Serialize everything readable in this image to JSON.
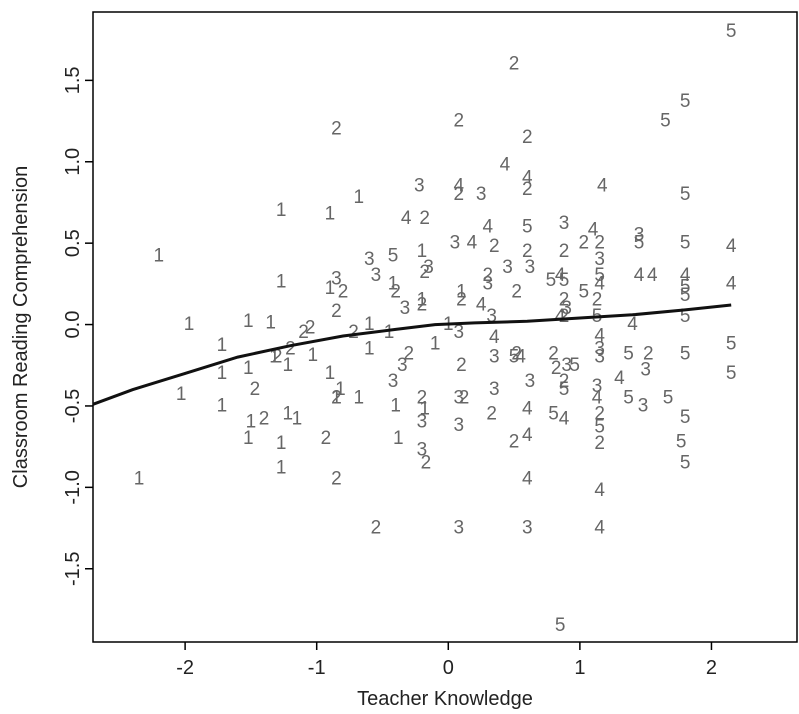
{
  "chart_data": {
    "type": "scatter",
    "xlabel": "Teacher Knowledge",
    "ylabel": "Classroom Reading Comprehension",
    "xlim": [
      -2.7,
      2.65
    ],
    "ylim": [
      -1.95,
      1.92
    ],
    "x_ticks": [
      -2,
      -1,
      0,
      1,
      2
    ],
    "y_ticks": [
      -1.5,
      -1.0,
      -0.5,
      0.0,
      0.5,
      1.0,
      1.5
    ],
    "y_tick_labels": [
      "-1.5",
      "-1.0",
      "-0.5",
      "0.0",
      "0.5",
      "1.0",
      "1.5"
    ],
    "marker": "point labels are group digits 1-5",
    "colors": {
      "points": "#666666",
      "smoother": "#111111"
    },
    "points": [
      {
        "x": -2.35,
        "y": -0.95,
        "label": "1"
      },
      {
        "x": -2.2,
        "y": 0.42,
        "label": "1"
      },
      {
        "x": -2.03,
        "y": -0.43,
        "label": "1"
      },
      {
        "x": -1.72,
        "y": -0.13,
        "label": "1"
      },
      {
        "x": -1.72,
        "y": -0.3,
        "label": "1"
      },
      {
        "x": -1.72,
        "y": -0.5,
        "label": "1"
      },
      {
        "x": -1.52,
        "y": 0.02,
        "label": "1"
      },
      {
        "x": -1.52,
        "y": -0.27,
        "label": "1"
      },
      {
        "x": -1.5,
        "y": -0.6,
        "label": "1"
      },
      {
        "x": -1.52,
        "y": -0.7,
        "label": "1"
      },
      {
        "x": -1.35,
        "y": 0.01,
        "label": "1"
      },
      {
        "x": -1.32,
        "y": -0.2,
        "label": "1"
      },
      {
        "x": -1.27,
        "y": 0.26,
        "label": "1"
      },
      {
        "x": -1.27,
        "y": 0.7,
        "label": "1"
      },
      {
        "x": -1.27,
        "y": -0.73,
        "label": "1"
      },
      {
        "x": -1.27,
        "y": -0.88,
        "label": "1"
      },
      {
        "x": -1.22,
        "y": -0.55,
        "label": "1"
      },
      {
        "x": -1.22,
        "y": -0.25,
        "label": "1"
      },
      {
        "x": -1.15,
        "y": -0.58,
        "label": "1"
      },
      {
        "x": -1.03,
        "y": -0.19,
        "label": "1"
      },
      {
        "x": -0.9,
        "y": 0.68,
        "label": "1"
      },
      {
        "x": -0.9,
        "y": 0.22,
        "label": "1"
      },
      {
        "x": -0.9,
        "y": -0.3,
        "label": "1"
      },
      {
        "x": -0.85,
        "y": -0.45,
        "label": "1"
      },
      {
        "x": -0.82,
        "y": -0.4,
        "label": "1"
      },
      {
        "x": -0.68,
        "y": 0.78,
        "label": "1"
      },
      {
        "x": -0.68,
        "y": -0.45,
        "label": "1"
      },
      {
        "x": -0.6,
        "y": -0.15,
        "label": "1"
      },
      {
        "x": -0.6,
        "y": 0.0,
        "label": "1"
      },
      {
        "x": -0.45,
        "y": -0.05,
        "label": "1"
      },
      {
        "x": -0.42,
        "y": 0.25,
        "label": "1"
      },
      {
        "x": -0.4,
        "y": -0.5,
        "label": "1"
      },
      {
        "x": -0.38,
        "y": -0.7,
        "label": "1"
      },
      {
        "x": -0.2,
        "y": 0.45,
        "label": "1"
      },
      {
        "x": -0.2,
        "y": 0.15,
        "label": "1"
      },
      {
        "x": -0.18,
        "y": -0.52,
        "label": "1"
      },
      {
        "x": -0.1,
        "y": -0.12,
        "label": "1"
      },
      {
        "x": 0.0,
        "y": 0.0,
        "label": "1"
      },
      {
        "x": 0.1,
        "y": 0.2,
        "label": "1"
      },
      {
        "x": -1.97,
        "y": 0.0,
        "label": "1"
      },
      {
        "x": -1.47,
        "y": -0.4,
        "label": "2"
      },
      {
        "x": -1.4,
        "y": -0.58,
        "label": "2"
      },
      {
        "x": -1.3,
        "y": -0.2,
        "label": "2"
      },
      {
        "x": -1.2,
        "y": -0.15,
        "label": "2"
      },
      {
        "x": -1.1,
        "y": -0.05,
        "label": "2"
      },
      {
        "x": -1.05,
        "y": -0.02,
        "label": "2"
      },
      {
        "x": -0.93,
        "y": -0.7,
        "label": "2"
      },
      {
        "x": -0.85,
        "y": 1.2,
        "label": "2"
      },
      {
        "x": -0.85,
        "y": 0.08,
        "label": "2"
      },
      {
        "x": -0.85,
        "y": -0.45,
        "label": "2"
      },
      {
        "x": -0.85,
        "y": -0.95,
        "label": "2"
      },
      {
        "x": -0.8,
        "y": 0.2,
        "label": "2"
      },
      {
        "x": -0.72,
        "y": -0.05,
        "label": "2"
      },
      {
        "x": -0.55,
        "y": -1.25,
        "label": "2"
      },
      {
        "x": -0.4,
        "y": 0.2,
        "label": "2"
      },
      {
        "x": -0.3,
        "y": -0.18,
        "label": "2"
      },
      {
        "x": -0.18,
        "y": 0.65,
        "label": "2"
      },
      {
        "x": -0.18,
        "y": 0.32,
        "label": "2"
      },
      {
        "x": -0.2,
        "y": 0.12,
        "label": "2"
      },
      {
        "x": -0.2,
        "y": -0.45,
        "label": "2"
      },
      {
        "x": -0.17,
        "y": -0.85,
        "label": "2"
      },
      {
        "x": 0.08,
        "y": 1.25,
        "label": "2"
      },
      {
        "x": 0.08,
        "y": 0.8,
        "label": "2"
      },
      {
        "x": 0.1,
        "y": 0.15,
        "label": "2"
      },
      {
        "x": 0.1,
        "y": -0.25,
        "label": "2"
      },
      {
        "x": 0.12,
        "y": -0.45,
        "label": "2"
      },
      {
        "x": 0.3,
        "y": 0.3,
        "label": "2"
      },
      {
        "x": 0.33,
        "y": -0.55,
        "label": "2"
      },
      {
        "x": 0.35,
        "y": 0.48,
        "label": "2"
      },
      {
        "x": 0.5,
        "y": 1.6,
        "label": "2"
      },
      {
        "x": 0.5,
        "y": -0.72,
        "label": "2"
      },
      {
        "x": 0.52,
        "y": 0.2,
        "label": "2"
      },
      {
        "x": 0.52,
        "y": -0.18,
        "label": "2"
      },
      {
        "x": 0.6,
        "y": 1.15,
        "label": "2"
      },
      {
        "x": 0.6,
        "y": 0.83,
        "label": "2"
      },
      {
        "x": 0.6,
        "y": 0.45,
        "label": "2"
      },
      {
        "x": 0.8,
        "y": -0.18,
        "label": "2"
      },
      {
        "x": 0.82,
        "y": -0.27,
        "label": "2"
      },
      {
        "x": 0.88,
        "y": 0.45,
        "label": "2"
      },
      {
        "x": 0.88,
        "y": 0.15,
        "label": "2"
      },
      {
        "x": 0.88,
        "y": 0.05,
        "label": "2"
      },
      {
        "x": 0.88,
        "y": -0.35,
        "label": "2"
      },
      {
        "x": 1.03,
        "y": 0.5,
        "label": "2"
      },
      {
        "x": 1.15,
        "y": 0.5,
        "label": "2"
      },
      {
        "x": 1.13,
        "y": 0.15,
        "label": "2"
      },
      {
        "x": 1.15,
        "y": -0.55,
        "label": "2"
      },
      {
        "x": 1.15,
        "y": -0.73,
        "label": "2"
      },
      {
        "x": 1.52,
        "y": -0.18,
        "label": "2"
      },
      {
        "x": -0.85,
        "y": 0.28,
        "label": "3"
      },
      {
        "x": -0.6,
        "y": 0.4,
        "label": "3"
      },
      {
        "x": -0.55,
        "y": 0.3,
        "label": "3"
      },
      {
        "x": -0.42,
        "y": -0.35,
        "label": "3"
      },
      {
        "x": -0.35,
        "y": -0.25,
        "label": "3"
      },
      {
        "x": -0.33,
        "y": 0.1,
        "label": "3"
      },
      {
        "x": -0.15,
        "y": 0.35,
        "label": "3"
      },
      {
        "x": -0.22,
        "y": 0.85,
        "label": "3"
      },
      {
        "x": -0.2,
        "y": -0.6,
        "label": "3"
      },
      {
        "x": -0.2,
        "y": -0.77,
        "label": "3"
      },
      {
        "x": 0.05,
        "y": 0.5,
        "label": "3"
      },
      {
        "x": 0.08,
        "y": -0.05,
        "label": "3"
      },
      {
        "x": 0.08,
        "y": -0.45,
        "label": "3"
      },
      {
        "x": 0.08,
        "y": -0.62,
        "label": "3"
      },
      {
        "x": 0.08,
        "y": -1.25,
        "label": "3"
      },
      {
        "x": 0.25,
        "y": 0.8,
        "label": "3"
      },
      {
        "x": 0.3,
        "y": 0.25,
        "label": "3"
      },
      {
        "x": 0.33,
        "y": 0.05,
        "label": "3"
      },
      {
        "x": 0.35,
        "y": -0.2,
        "label": "3"
      },
      {
        "x": 0.35,
        "y": -0.4,
        "label": "3"
      },
      {
        "x": 0.45,
        "y": 0.35,
        "label": "3"
      },
      {
        "x": 0.62,
        "y": 0.35,
        "label": "3"
      },
      {
        "x": 0.62,
        "y": -0.35,
        "label": "3"
      },
      {
        "x": 0.6,
        "y": -1.25,
        "label": "3"
      },
      {
        "x": 0.88,
        "y": 0.62,
        "label": "3"
      },
      {
        "x": 0.9,
        "y": 0.1,
        "label": "3"
      },
      {
        "x": 0.9,
        "y": -0.25,
        "label": "3"
      },
      {
        "x": 1.15,
        "y": 0.4,
        "label": "3"
      },
      {
        "x": 1.15,
        "y": -0.15,
        "label": "3"
      },
      {
        "x": 1.15,
        "y": -0.2,
        "label": "3"
      },
      {
        "x": 1.13,
        "y": -0.38,
        "label": "3"
      },
      {
        "x": 1.5,
        "y": -0.28,
        "label": "3"
      },
      {
        "x": 1.48,
        "y": -0.5,
        "label": "3"
      },
      {
        "x": 1.45,
        "y": 0.55,
        "label": "3"
      },
      {
        "x": -0.32,
        "y": 0.65,
        "label": "4"
      },
      {
        "x": 0.08,
        "y": 0.85,
        "label": "4"
      },
      {
        "x": 0.18,
        "y": 0.5,
        "label": "4"
      },
      {
        "x": 0.3,
        "y": 0.6,
        "label": "4"
      },
      {
        "x": 0.25,
        "y": 0.12,
        "label": "4"
      },
      {
        "x": 0.35,
        "y": -0.08,
        "label": "4"
      },
      {
        "x": 0.43,
        "y": 0.98,
        "label": "4"
      },
      {
        "x": 0.55,
        "y": -0.2,
        "label": "4"
      },
      {
        "x": 0.6,
        "y": 0.9,
        "label": "4"
      },
      {
        "x": 0.6,
        "y": -0.52,
        "label": "4"
      },
      {
        "x": 0.6,
        "y": -0.68,
        "label": "4"
      },
      {
        "x": 0.6,
        "y": -0.95,
        "label": "4"
      },
      {
        "x": 0.85,
        "y": 0.3,
        "label": "4"
      },
      {
        "x": 0.85,
        "y": 0.05,
        "label": "4"
      },
      {
        "x": 0.88,
        "y": -0.58,
        "label": "4"
      },
      {
        "x": 1.1,
        "y": 0.58,
        "label": "4"
      },
      {
        "x": 1.17,
        "y": 0.85,
        "label": "4"
      },
      {
        "x": 1.15,
        "y": 0.25,
        "label": "4"
      },
      {
        "x": 1.15,
        "y": -0.07,
        "label": "4"
      },
      {
        "x": 1.13,
        "y": -0.45,
        "label": "4"
      },
      {
        "x": 1.15,
        "y": -1.02,
        "label": "4"
      },
      {
        "x": 1.15,
        "y": -1.25,
        "label": "4"
      },
      {
        "x": 1.3,
        "y": -0.33,
        "label": "4"
      },
      {
        "x": 1.45,
        "y": 0.3,
        "label": "4"
      },
      {
        "x": 1.55,
        "y": 0.3,
        "label": "4"
      },
      {
        "x": 1.8,
        "y": 0.3,
        "label": "4"
      },
      {
        "x": 2.15,
        "y": 0.48,
        "label": "4"
      },
      {
        "x": 2.15,
        "y": 0.25,
        "label": "4"
      },
      {
        "x": 1.4,
        "y": 0.0,
        "label": "4"
      },
      {
        "x": -0.42,
        "y": 0.42,
        "label": "5"
      },
      {
        "x": 0.5,
        "y": -0.2,
        "label": "5"
      },
      {
        "x": 0.6,
        "y": 0.6,
        "label": "5"
      },
      {
        "x": 0.78,
        "y": 0.27,
        "label": "5"
      },
      {
        "x": 0.8,
        "y": -0.55,
        "label": "5"
      },
      {
        "x": 0.88,
        "y": 0.27,
        "label": "5"
      },
      {
        "x": 0.88,
        "y": -0.4,
        "label": "5"
      },
      {
        "x": 0.85,
        "y": -1.85,
        "label": "5"
      },
      {
        "x": 1.03,
        "y": 0.2,
        "label": "5"
      },
      {
        "x": 1.15,
        "y": 0.3,
        "label": "5"
      },
      {
        "x": 1.13,
        "y": 0.05,
        "label": "5"
      },
      {
        "x": 1.15,
        "y": -0.63,
        "label": "5"
      },
      {
        "x": 1.37,
        "y": -0.18,
        "label": "5"
      },
      {
        "x": 1.37,
        "y": -0.45,
        "label": "5"
      },
      {
        "x": 1.45,
        "y": 0.5,
        "label": "5"
      },
      {
        "x": 1.65,
        "y": 1.25,
        "label": "5"
      },
      {
        "x": 1.67,
        "y": -0.45,
        "label": "5"
      },
      {
        "x": 1.8,
        "y": 1.37,
        "label": "5"
      },
      {
        "x": 1.8,
        "y": 0.8,
        "label": "5"
      },
      {
        "x": 1.8,
        "y": 0.5,
        "label": "5"
      },
      {
        "x": 1.8,
        "y": 0.23,
        "label": "5"
      },
      {
        "x": 1.8,
        "y": 0.18,
        "label": "5"
      },
      {
        "x": 1.8,
        "y": 0.05,
        "label": "5"
      },
      {
        "x": 1.8,
        "y": -0.18,
        "label": "5"
      },
      {
        "x": 1.8,
        "y": -0.57,
        "label": "5"
      },
      {
        "x": 1.77,
        "y": -0.72,
        "label": "5"
      },
      {
        "x": 1.8,
        "y": -0.85,
        "label": "5"
      },
      {
        "x": 2.15,
        "y": 1.8,
        "label": "5"
      },
      {
        "x": 2.15,
        "y": -0.12,
        "label": "5"
      },
      {
        "x": 2.15,
        "y": -0.3,
        "label": "5"
      },
      {
        "x": 0.96,
        "y": -0.25,
        "label": "5"
      }
    ],
    "smoother": [
      {
        "x": -2.7,
        "y": -0.49
      },
      {
        "x": -2.4,
        "y": -0.4
      },
      {
        "x": -2.0,
        "y": -0.3
      },
      {
        "x": -1.6,
        "y": -0.2
      },
      {
        "x": -1.2,
        "y": -0.13
      },
      {
        "x": -0.8,
        "y": -0.07
      },
      {
        "x": -0.4,
        "y": -0.03
      },
      {
        "x": -0.1,
        "y": 0.0
      },
      {
        "x": 0.2,
        "y": 0.01
      },
      {
        "x": 0.6,
        "y": 0.02
      },
      {
        "x": 1.0,
        "y": 0.04
      },
      {
        "x": 1.4,
        "y": 0.06
      },
      {
        "x": 1.8,
        "y": 0.09
      },
      {
        "x": 2.15,
        "y": 0.12
      }
    ]
  }
}
